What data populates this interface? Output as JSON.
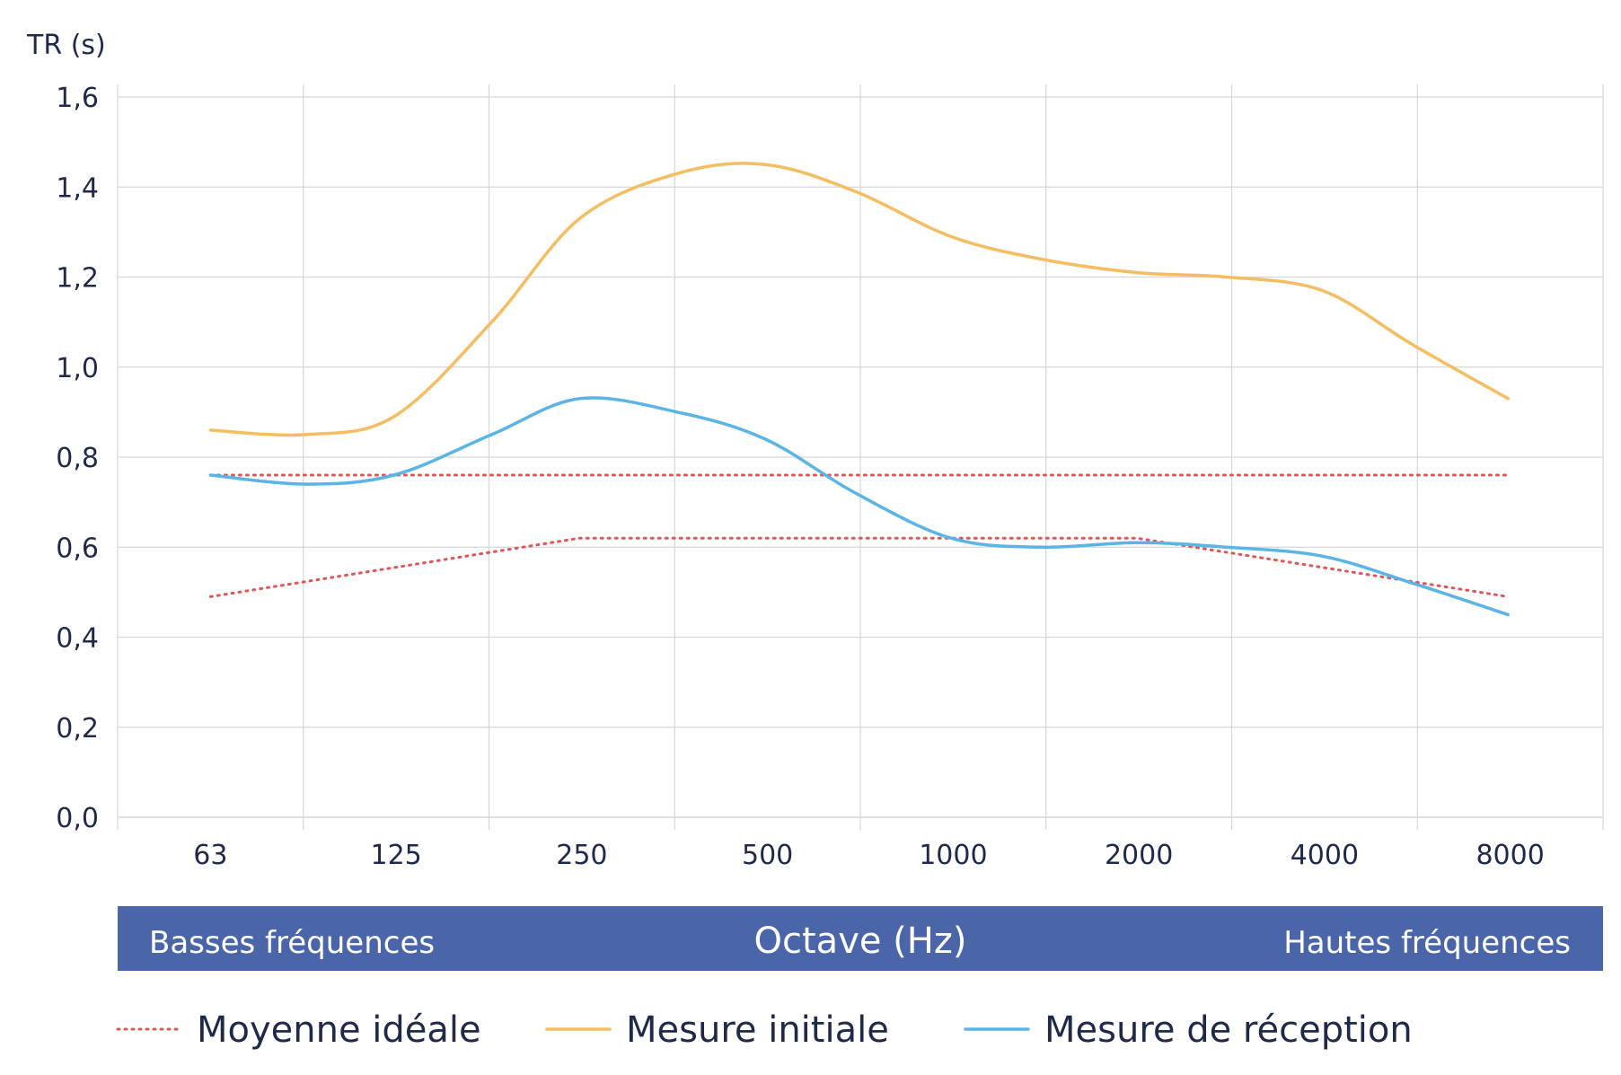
{
  "chart_data": {
    "type": "line",
    "ylabel": "TR (s)",
    "xlabel": "Octave (Hz)",
    "band_left": "Basses fréquences",
    "band_right": "Hautes fréquences",
    "categories": [
      "63",
      "125",
      "250",
      "500",
      "1000",
      "2000",
      "4000",
      "8000"
    ],
    "y_ticks": [
      "0,0",
      "0,2",
      "0,4",
      "0,6",
      "0,8",
      "1,0",
      "1,2",
      "1,4",
      "1,6"
    ],
    "ylim": [
      0,
      1.6
    ],
    "grid": true,
    "legend_position": "bottom",
    "series": [
      {
        "name": "Moyenne idéale",
        "style": "dotted",
        "color": "#e05555",
        "bounds": [
          {
            "x": [
              63,
              8000
            ],
            "values": [
              0.76,
              0.76
            ]
          },
          {
            "x": [
              63,
              250,
              500,
              1000,
              2000,
              8000
            ],
            "values": [
              0.49,
              0.62,
              0.62,
              0.62,
              0.62,
              0.49
            ]
          }
        ]
      },
      {
        "name": "Mesure initiale",
        "style": "solid",
        "color": "#f5bd61",
        "x": [
          63,
          90,
          125,
          180,
          250,
          360,
          500,
          700,
          1000,
          1400,
          2000,
          2800,
          4000,
          5600,
          8000
        ],
        "values": [
          0.86,
          0.85,
          0.89,
          1.1,
          1.33,
          1.43,
          1.45,
          1.39,
          1.29,
          1.24,
          1.21,
          1.2,
          1.17,
          1.05,
          0.93
        ]
      },
      {
        "name": "Mesure de réception",
        "style": "solid",
        "color": "#5ab4e5",
        "x": [
          63,
          90,
          125,
          180,
          250,
          360,
          500,
          700,
          1000,
          1400,
          2000,
          2800,
          4000,
          5600,
          8000
        ],
        "values": [
          0.76,
          0.74,
          0.76,
          0.85,
          0.93,
          0.9,
          0.84,
          0.72,
          0.62,
          0.6,
          0.61,
          0.6,
          0.58,
          0.52,
          0.45
        ]
      }
    ]
  },
  "colors": {
    "band": "#4a66a9",
    "grid": "#d4d6dc",
    "text": "#1f2a4a"
  }
}
